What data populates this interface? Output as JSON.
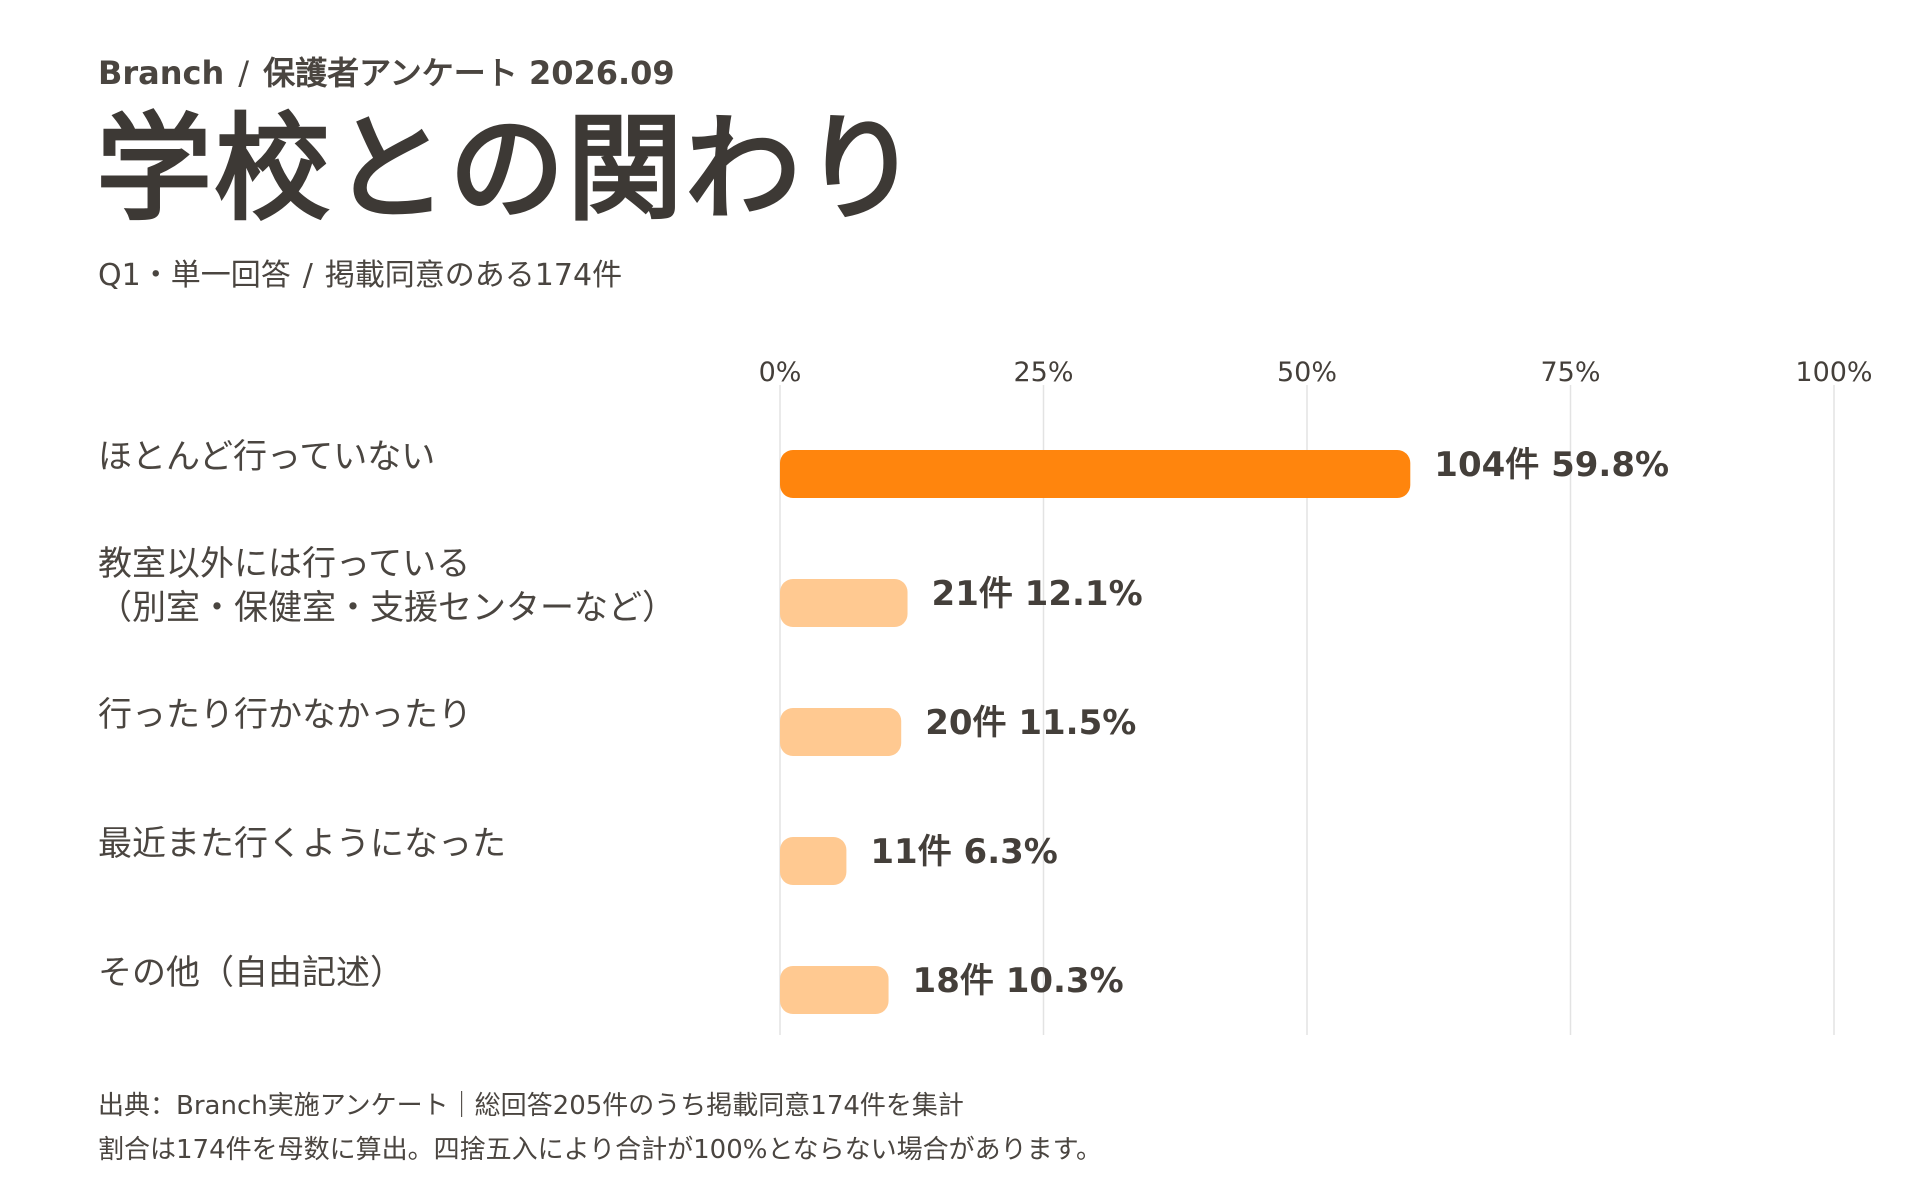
{
  "header": {
    "brand": "Branch",
    "separator": "/",
    "survey": "保護者アンケート 2026.09"
  },
  "title": "学校との関わり",
  "subtitle": {
    "question": "Q1・単一回答",
    "separator": "/",
    "scope": "掲載同意のある174件"
  },
  "chart_data": {
    "type": "bar",
    "orientation": "horizontal",
    "categories": [
      [
        "ほとんど行っていない"
      ],
      [
        "教室以外には行っている",
        "（別室・保健室・支援センターなど）"
      ],
      [
        "行ったり行かなかったり"
      ],
      [
        "最近また行くようになった"
      ],
      [
        "その他（自由記述）"
      ]
    ],
    "counts": [
      104,
      21,
      20,
      11,
      18
    ],
    "values": [
      59.8,
      12.1,
      11.5,
      6.3,
      10.3
    ],
    "value_labels": [
      "104件 59.8%",
      "21件 12.1%",
      "20件 11.5%",
      "11件 6.3%",
      "18件 10.3%"
    ],
    "xlim": [
      0,
      100
    ],
    "xticks": [
      "0%",
      "25%",
      "50%",
      "75%",
      "100%"
    ],
    "grid": true,
    "colors": {
      "highlight": "#ff850d",
      "normal": "#ffc991",
      "grid": "#e3e3e3",
      "text": "#443f3a"
    }
  },
  "footer": {
    "source": "出典：Branch実施アンケート｜総回答205件のうち掲載同意174件を集計",
    "note": "割合は174件を母数に算出。四捨五入により合計が100%とならない場合があります。"
  }
}
